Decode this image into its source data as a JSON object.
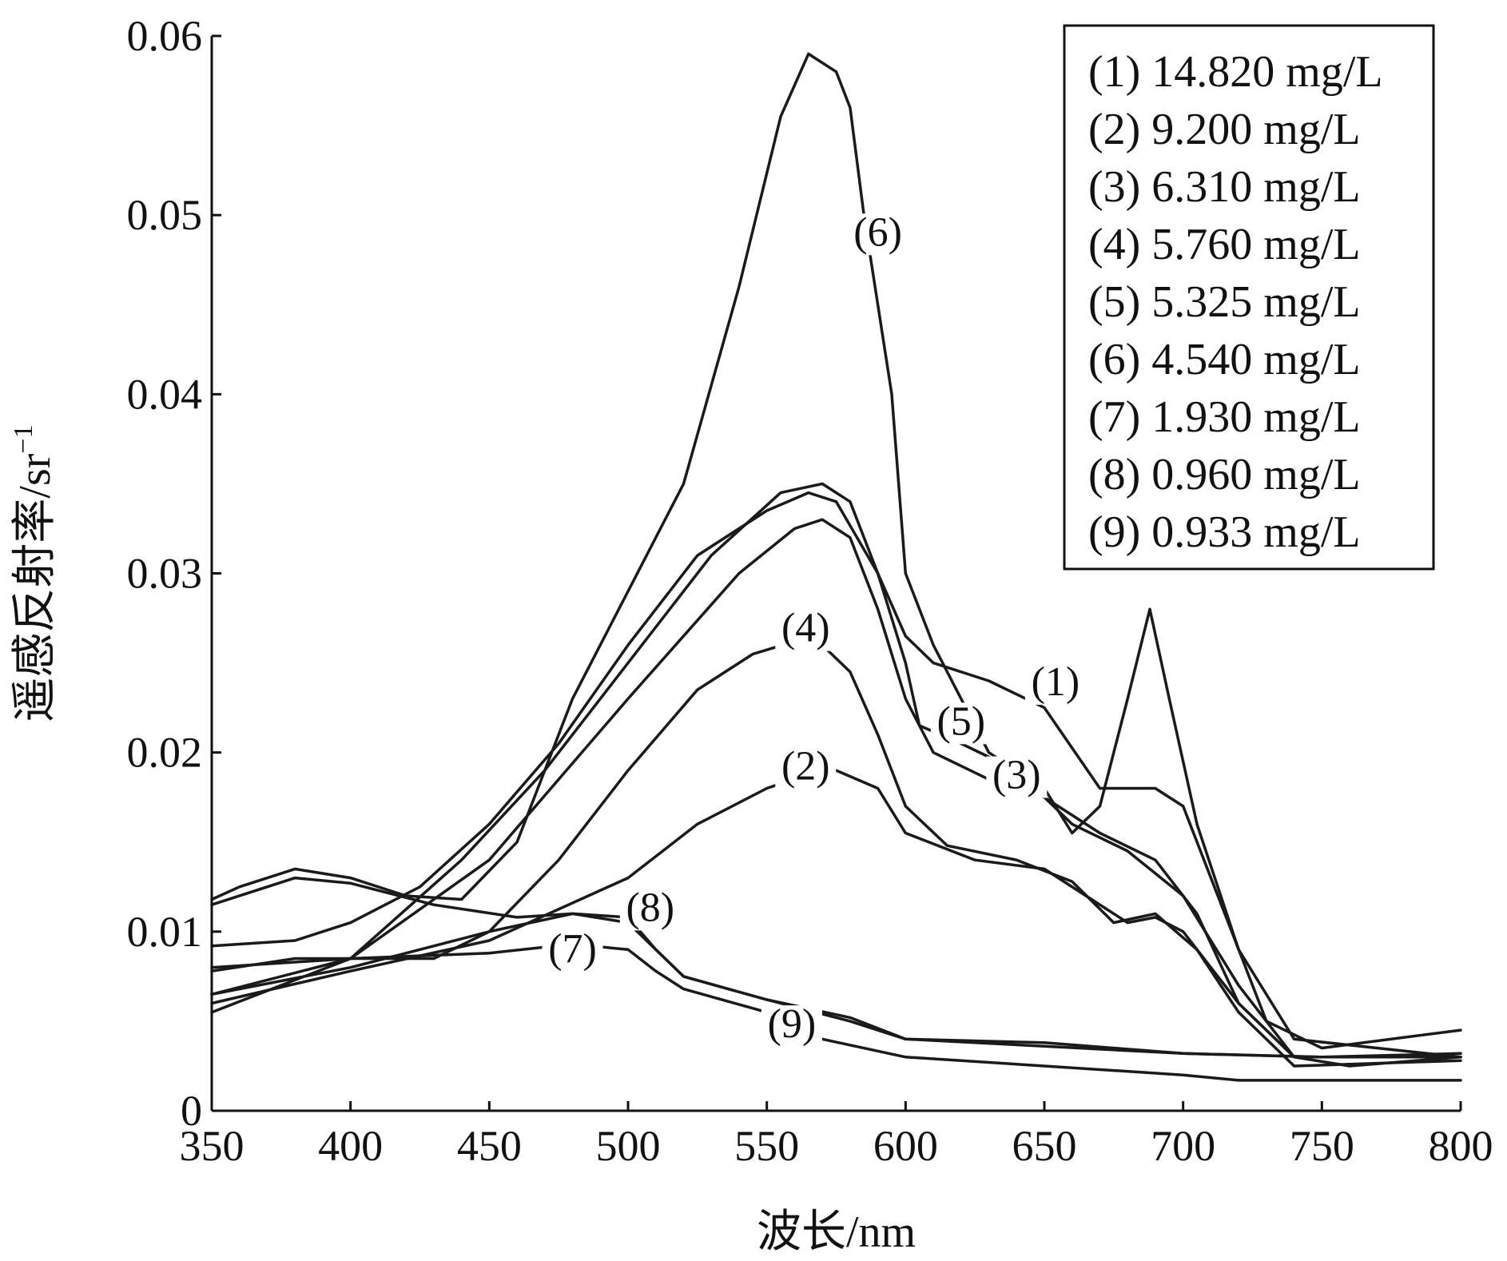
{
  "chart_data": {
    "type": "line",
    "xlabel": "波长/nm",
    "ylabel": "遥感反射率/sr",
    "ylabel_sup": "−1",
    "xlim": [
      350,
      800
    ],
    "ylim": [
      0,
      0.06
    ],
    "xticks": [
      "350",
      "400",
      "450",
      "500",
      "550",
      "600",
      "650",
      "700",
      "750",
      "800"
    ],
    "yticks": [
      "0",
      "0.01",
      "0.02",
      "0.03",
      "0.04",
      "0.05",
      "0.06"
    ],
    "grid": false,
    "legend_position": "top-right",
    "legend": [
      "(1) 14.820 mg/L",
      "(2) 9.200 mg/L",
      "(3) 6.310 mg/L",
      "(4) 5.760 mg/L",
      "(5) 5.325 mg/L",
      "(6) 4.540 mg/L",
      "(7) 1.930 mg/L",
      "(8) 0.960 mg/L",
      "(9) 0.933 mg/L"
    ],
    "series": [
      {
        "name": "(1) 14.820 mg/L",
        "x": [
          350,
          380,
          400,
          425,
          450,
          475,
          500,
          525,
          550,
          565,
          575,
          590,
          600,
          610,
          630,
          650,
          670,
          690,
          700,
          715,
          730,
          750,
          800
        ],
        "y": [
          0.0092,
          0.0095,
          0.0105,
          0.0125,
          0.016,
          0.0205,
          0.026,
          0.031,
          0.0335,
          0.0345,
          0.034,
          0.03,
          0.0265,
          0.025,
          0.024,
          0.0225,
          0.018,
          0.018,
          0.017,
          0.011,
          0.005,
          0.0035,
          0.0045
        ]
      },
      {
        "name": "(2) 9.200 mg/L",
        "x": [
          350,
          400,
          450,
          500,
          525,
          550,
          565,
          575,
          590,
          600,
          625,
          650,
          665,
          680,
          690,
          700,
          720,
          740,
          760,
          800
        ],
        "y": [
          0.006,
          0.0078,
          0.0095,
          0.013,
          0.016,
          0.018,
          0.0188,
          0.019,
          0.018,
          0.0155,
          0.014,
          0.0135,
          0.012,
          0.0105,
          0.0108,
          0.01,
          0.006,
          0.003,
          0.0025,
          0.003
        ]
      },
      {
        "name": "(3) 6.310 mg/L",
        "x": [
          350,
          400,
          450,
          500,
          540,
          560,
          570,
          580,
          590,
          600,
          610,
          630,
          650,
          670,
          690,
          705,
          720,
          740,
          800
        ],
        "y": [
          0.0055,
          0.0085,
          0.014,
          0.023,
          0.03,
          0.0325,
          0.033,
          0.032,
          0.028,
          0.023,
          0.02,
          0.0185,
          0.0175,
          0.0155,
          0.014,
          0.011,
          0.006,
          0.003,
          0.003
        ]
      },
      {
        "name": "(4) 5.760 mg/L",
        "x": [
          350,
          400,
          450,
          475,
          500,
          525,
          545,
          560,
          570,
          580,
          590,
          600,
          615,
          640,
          660,
          675,
          690,
          705,
          720,
          740,
          800
        ],
        "y": [
          0.0065,
          0.008,
          0.01,
          0.014,
          0.019,
          0.0235,
          0.0255,
          0.0262,
          0.026,
          0.0245,
          0.021,
          0.017,
          0.0148,
          0.014,
          0.0128,
          0.0105,
          0.011,
          0.009,
          0.0055,
          0.0025,
          0.0028
        ]
      },
      {
        "name": "(5) 5.325 mg/L",
        "x": [
          350,
          400,
          440,
          470,
          500,
          530,
          555,
          570,
          580,
          590,
          600,
          605,
          620,
          640,
          660,
          680,
          700,
          720,
          740,
          800
        ],
        "y": [
          0.0065,
          0.0085,
          0.014,
          0.019,
          0.025,
          0.031,
          0.0345,
          0.035,
          0.034,
          0.03,
          0.025,
          0.0215,
          0.0205,
          0.019,
          0.016,
          0.0145,
          0.012,
          0.007,
          0.003,
          0.003
        ]
      },
      {
        "name": "(6) 4.540 mg/L",
        "x": [
          350,
          360,
          380,
          400,
          420,
          440,
          460,
          480,
          500,
          520,
          540,
          555,
          565,
          575,
          580,
          585,
          595,
          600,
          610,
          630,
          650,
          660,
          670,
          680,
          688,
          695,
          705,
          720,
          740,
          800
        ],
        "y": [
          0.0118,
          0.0125,
          0.0135,
          0.013,
          0.012,
          0.0118,
          0.015,
          0.023,
          0.029,
          0.035,
          0.046,
          0.0555,
          0.059,
          0.058,
          0.056,
          0.05,
          0.04,
          0.03,
          0.026,
          0.02,
          0.018,
          0.0155,
          0.017,
          0.023,
          0.028,
          0.023,
          0.016,
          0.009,
          0.004,
          0.003
        ]
      },
      {
        "name": "(7) 1.930 mg/L",
        "x": [
          350,
          380,
          400,
          430,
          450,
          480,
          500,
          520,
          550,
          580,
          600,
          650,
          700,
          750,
          800
        ],
        "y": [
          0.0078,
          0.0085,
          0.0085,
          0.0085,
          0.01,
          0.011,
          0.0105,
          0.0075,
          0.0062,
          0.0052,
          0.004,
          0.0036,
          0.0032,
          0.003,
          0.003
        ]
      },
      {
        "name": "(8) 0.960 mg/L",
        "x": [
          350,
          380,
          400,
          430,
          460,
          480,
          500,
          510,
          520,
          550,
          580,
          600,
          650,
          700,
          750,
          800
        ],
        "y": [
          0.0115,
          0.013,
          0.0127,
          0.0115,
          0.0108,
          0.011,
          0.0108,
          0.009,
          0.0075,
          0.0062,
          0.005,
          0.004,
          0.0038,
          0.0032,
          0.003,
          0.0032
        ]
      },
      {
        "name": "(9) 0.933 mg/L",
        "x": [
          350,
          400,
          450,
          480,
          500,
          510,
          520,
          550,
          570,
          600,
          650,
          700,
          720,
          760,
          800
        ],
        "y": [
          0.008,
          0.0085,
          0.0088,
          0.0093,
          0.009,
          0.0078,
          0.0068,
          0.0055,
          0.004,
          0.003,
          0.0025,
          0.002,
          0.0017,
          0.0017,
          0.0017
        ]
      }
    ],
    "annotations": [
      {
        "text": "(1)",
        "x": 654,
        "y": 0.0232
      },
      {
        "text": "(2)",
        "x": 564,
        "y": 0.0185
      },
      {
        "text": "(3)",
        "x": 640,
        "y": 0.018
      },
      {
        "text": "(4)",
        "x": 564,
        "y": 0.0262
      },
      {
        "text": "(5)",
        "x": 620,
        "y": 0.021
      },
      {
        "text": "(6)",
        "x": 590,
        "y": 0.0483
      },
      {
        "text": "(7)",
        "x": 480,
        "y": 0.0083
      },
      {
        "text": "(8)",
        "x": 508,
        "y": 0.0106
      },
      {
        "text": "(9)",
        "x": 559,
        "y": 0.0041
      }
    ]
  }
}
